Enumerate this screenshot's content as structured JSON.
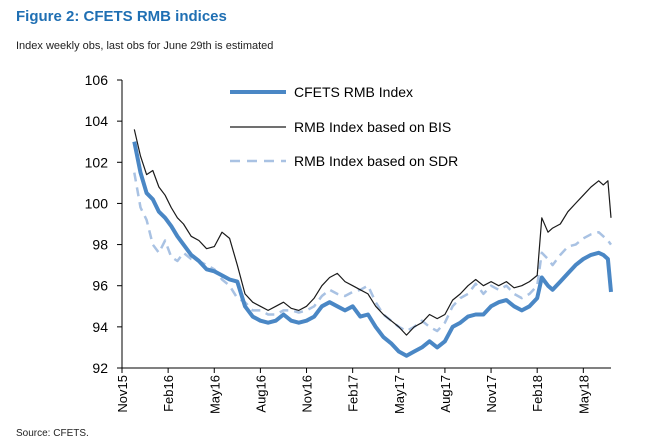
{
  "header": {
    "title": "Figure 2: CFETS RMB indices",
    "subtitle": "Index weekly obs, last obs for June 29th is estimated"
  },
  "footer": {
    "source": "Source: CFETS."
  },
  "colors": {
    "title": "#1f6fb3",
    "cfets": "#4a87c5",
    "bis": "#1a1a1a",
    "sdr": "#a9c2e3"
  },
  "chart_data": {
    "type": "line",
    "title": "",
    "xlabel": "",
    "ylabel": "",
    "ylim": [
      92,
      106
    ],
    "yticks": [
      92,
      94,
      96,
      98,
      100,
      102,
      104,
      106
    ],
    "xlim": [
      0,
      31.8
    ],
    "xticks": [
      {
        "label": "Nov15",
        "x": 0
      },
      {
        "label": "Feb16",
        "x": 3
      },
      {
        "label": "May16",
        "x": 6
      },
      {
        "label": "Aug16",
        "x": 9
      },
      {
        "label": "Nov16",
        "x": 12
      },
      {
        "label": "Feb17",
        "x": 15
      },
      {
        "label": "May17",
        "x": 18
      },
      {
        "label": "Aug17",
        "x": 21
      },
      {
        "label": "Nov17",
        "x": 24
      },
      {
        "label": "Feb18",
        "x": 27
      },
      {
        "label": "May18",
        "x": 30
      }
    ],
    "legend": [
      "CFETS RMB Index",
      "RMB Index based on BIS",
      "RMB Index based on SDR"
    ],
    "series": [
      {
        "name": "CFETS RMB Index",
        "x": [
          0.8,
          1.2,
          1.6,
          2.0,
          2.4,
          2.8,
          3.2,
          3.6,
          4.0,
          4.5,
          5.0,
          5.5,
          6.0,
          6.5,
          7.0,
          7.5,
          8.0,
          8.5,
          9.0,
          9.5,
          10.0,
          10.5,
          11.0,
          11.5,
          12.0,
          12.5,
          13.0,
          13.5,
          14.0,
          14.5,
          15.0,
          15.5,
          16.0,
          16.5,
          17.0,
          17.5,
          18.0,
          18.5,
          19.0,
          19.5,
          20.0,
          20.5,
          21.0,
          21.5,
          22.0,
          22.5,
          23.0,
          23.5,
          24.0,
          24.5,
          25.0,
          25.5,
          26.0,
          26.5,
          27.0,
          27.3,
          27.7,
          28.0,
          28.5,
          29.0,
          29.5,
          30.0,
          30.5,
          31.0,
          31.3,
          31.6,
          31.8
        ],
        "values": [
          103.0,
          101.5,
          100.5,
          100.2,
          99.6,
          99.3,
          98.9,
          98.4,
          98.0,
          97.5,
          97.2,
          96.8,
          96.7,
          96.5,
          96.3,
          96.2,
          95.0,
          94.5,
          94.3,
          94.2,
          94.3,
          94.6,
          94.3,
          94.2,
          94.3,
          94.5,
          95.0,
          95.2,
          95.0,
          94.8,
          95.0,
          94.5,
          94.6,
          94.0,
          93.5,
          93.2,
          92.8,
          92.6,
          92.8,
          93.0,
          93.3,
          93.0,
          93.3,
          94.0,
          94.2,
          94.5,
          94.6,
          94.6,
          95.0,
          95.2,
          95.3,
          95.0,
          94.8,
          95.0,
          95.4,
          96.4,
          96.0,
          95.8,
          96.2,
          96.6,
          97.0,
          97.3,
          97.5,
          97.6,
          97.5,
          97.3,
          95.7
        ]
      },
      {
        "name": "RMB Index based on BIS",
        "x": [
          0.8,
          1.2,
          1.6,
          2.0,
          2.4,
          2.8,
          3.2,
          3.6,
          4.0,
          4.5,
          5.0,
          5.5,
          6.0,
          6.5,
          7.0,
          7.5,
          8.0,
          8.5,
          9.0,
          9.5,
          10.0,
          10.5,
          11.0,
          11.5,
          12.0,
          12.5,
          13.0,
          13.5,
          14.0,
          14.5,
          15.0,
          15.5,
          16.0,
          16.5,
          17.0,
          17.5,
          18.0,
          18.5,
          19.0,
          19.5,
          20.0,
          20.5,
          21.0,
          21.5,
          22.0,
          22.5,
          23.0,
          23.5,
          24.0,
          24.5,
          25.0,
          25.5,
          26.0,
          26.5,
          27.0,
          27.3,
          27.7,
          28.0,
          28.5,
          29.0,
          29.5,
          30.0,
          30.5,
          31.0,
          31.3,
          31.6,
          31.8
        ],
        "values": [
          103.6,
          102.3,
          101.4,
          101.6,
          100.8,
          100.4,
          99.8,
          99.3,
          99.0,
          98.4,
          98.2,
          97.8,
          97.9,
          98.6,
          98.3,
          97.0,
          95.6,
          95.2,
          95.0,
          94.8,
          95.0,
          95.2,
          94.9,
          94.8,
          95.0,
          95.4,
          96.0,
          96.4,
          96.6,
          96.2,
          96.0,
          95.8,
          95.6,
          95.0,
          94.6,
          94.3,
          94.0,
          93.6,
          94.0,
          94.2,
          94.6,
          94.4,
          94.6,
          95.3,
          95.6,
          96.0,
          96.3,
          96.0,
          96.2,
          96.0,
          96.2,
          95.9,
          96.0,
          96.2,
          96.5,
          99.3,
          98.6,
          98.8,
          99.0,
          99.6,
          100.0,
          100.4,
          100.8,
          101.1,
          100.9,
          101.1,
          99.3
        ]
      },
      {
        "name": "RMB Index based on SDR",
        "x": [
          0.8,
          1.2,
          1.6,
          2.0,
          2.4,
          2.8,
          3.2,
          3.6,
          4.0,
          4.5,
          5.0,
          5.5,
          6.0,
          6.5,
          7.0,
          7.5,
          8.0,
          8.5,
          9.0,
          9.5,
          10.0,
          10.5,
          11.0,
          11.5,
          12.0,
          12.5,
          13.0,
          13.5,
          14.0,
          14.5,
          15.0,
          15.5,
          16.0,
          16.5,
          17.0,
          17.5,
          18.0,
          18.5,
          19.0,
          19.5,
          20.0,
          20.5,
          21.0,
          21.5,
          22.0,
          22.5,
          23.0,
          23.5,
          24.0,
          24.5,
          25.0,
          25.5,
          26.0,
          26.5,
          27.0,
          27.3,
          27.7,
          28.0,
          28.5,
          29.0,
          29.5,
          30.0,
          30.5,
          31.0,
          31.3,
          31.6,
          31.8
        ],
        "values": [
          101.5,
          99.8,
          99.2,
          98.0,
          97.6,
          98.2,
          97.4,
          97.2,
          97.6,
          97.3,
          97.2,
          97.0,
          96.8,
          96.3,
          96.0,
          95.4,
          95.2,
          94.8,
          94.8,
          94.6,
          94.6,
          94.8,
          94.8,
          94.7,
          94.8,
          95.0,
          95.5,
          95.8,
          95.6,
          95.5,
          95.7,
          95.8,
          96.0,
          95.2,
          94.6,
          94.3,
          94.0,
          93.8,
          94.0,
          94.3,
          94.0,
          93.8,
          94.2,
          95.0,
          95.4,
          95.6,
          96.1,
          95.6,
          96.0,
          95.8,
          96.0,
          95.6,
          95.4,
          95.6,
          96.0,
          97.6,
          97.3,
          97.0,
          97.5,
          97.9,
          98.0,
          98.3,
          98.5,
          98.6,
          98.4,
          98.2,
          98.0
        ]
      }
    ]
  }
}
